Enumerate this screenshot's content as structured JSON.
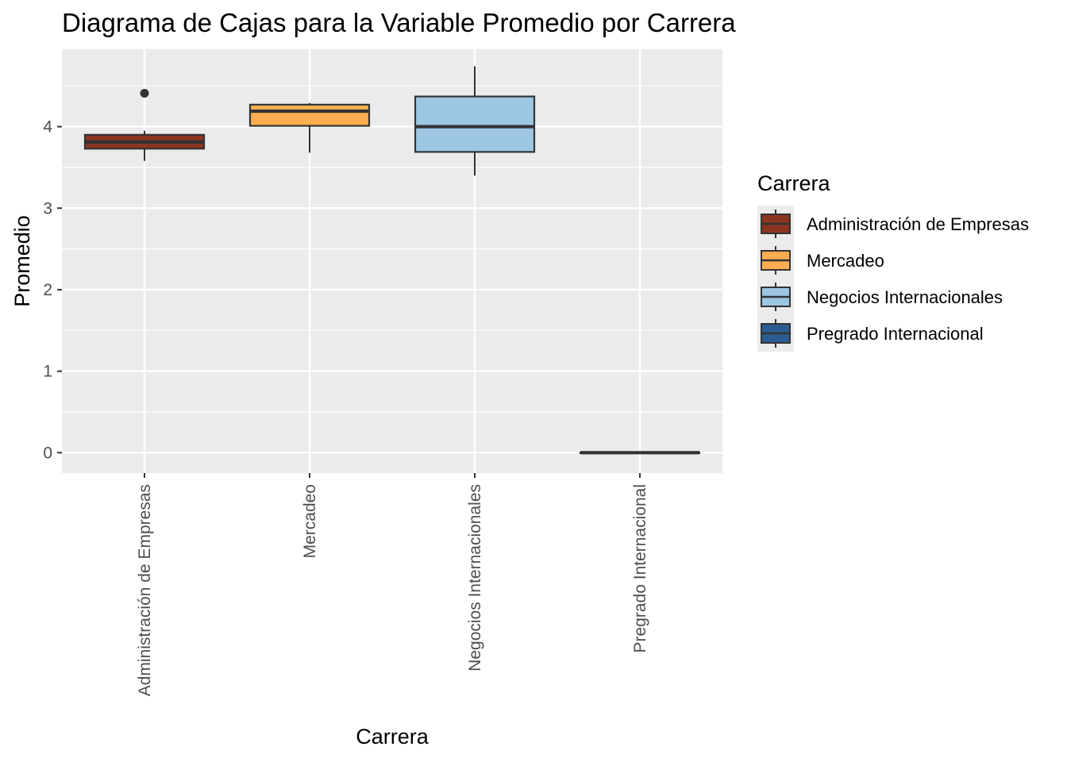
{
  "chart_data": {
    "type": "boxplot",
    "title": "Diagrama de Cajas para la Variable Promedio por Carrera",
    "xlabel": "Carrera",
    "ylabel": "Promedio",
    "ylim": [
      -0.25,
      4.95
    ],
    "yticks": [
      0,
      1,
      2,
      3,
      4
    ],
    "grid": true,
    "legend": {
      "title": "Carrera",
      "position": "right"
    },
    "categories": [
      "Administración de Empresas",
      "Mercadeo",
      "Negocios Internacionales",
      "Pregrado Internacional"
    ],
    "boxes": [
      {
        "category": "Administración de Empresas",
        "min": 3.58,
        "q1": 3.73,
        "median": 3.81,
        "q3": 3.9,
        "max": 3.95,
        "outliers": [
          4.41
        ],
        "color": "#8B3520"
      },
      {
        "category": "Mercadeo",
        "min": 3.68,
        "q1": 4.01,
        "median": 4.19,
        "q3": 4.27,
        "max": 4.29,
        "outliers": [],
        "color": "#FDAE50"
      },
      {
        "category": "Negocios Internacionales",
        "min": 3.4,
        "q1": 3.69,
        "median": 4.0,
        "q3": 4.37,
        "max": 4.74,
        "outliers": [],
        "color": "#9CC6E2"
      },
      {
        "category": "Pregrado Internacional",
        "min": 0,
        "q1": 0,
        "median": 0,
        "q3": 0,
        "max": 0,
        "outliers": [],
        "color": "#2A5C93"
      }
    ]
  }
}
